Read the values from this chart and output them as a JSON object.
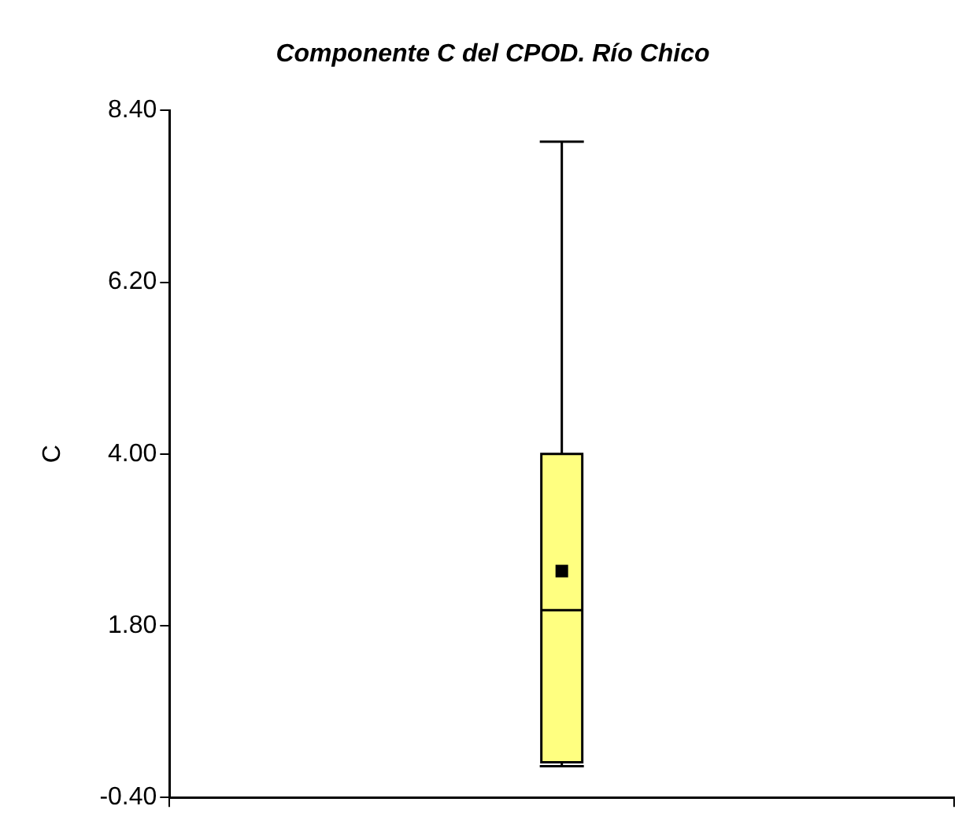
{
  "chart_data": {
    "type": "box",
    "title": "Componente C del CPOD. Río Chico",
    "ylabel": "C",
    "categories": [
      null
    ],
    "series": [
      {
        "color": "#ffff80",
        "boxes": [
          {
            "low": 0.0,
            "q1": 0.05,
            "median": 2.0,
            "q3": 4.0,
            "high": 8.0,
            "mean": 2.5
          }
        ]
      }
    ],
    "ylim": [
      -0.4,
      8.4
    ],
    "yticks": [
      {
        "value": -0.4,
        "label": "-0.40"
      },
      {
        "value": 1.8,
        "label": "1.80"
      },
      {
        "value": 4,
        "label": "4.00"
      },
      {
        "value": 6.2,
        "label": "6.20"
      },
      {
        "value": 8.4,
        "label": "8.40"
      }
    ],
    "grid": false,
    "legend": false,
    "marker": "square"
  }
}
